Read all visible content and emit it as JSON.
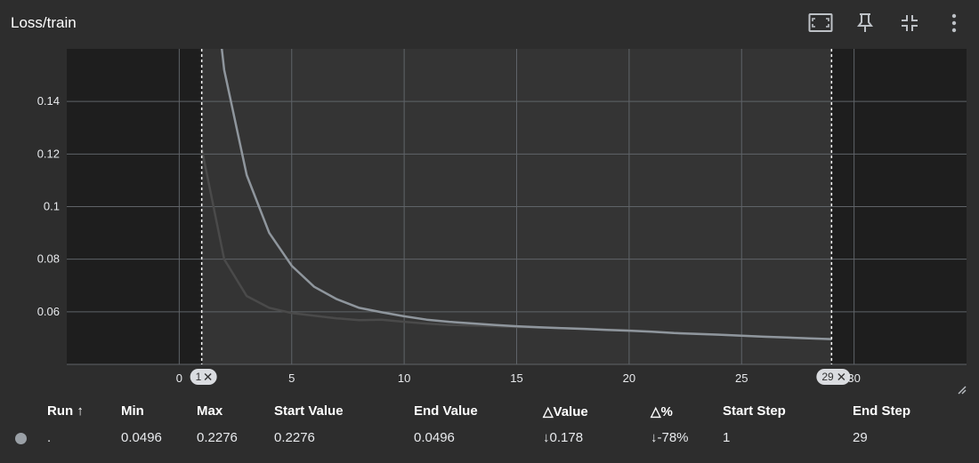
{
  "header": {
    "title": "Loss/train",
    "icons": [
      "fit-domain-icon",
      "pin-icon",
      "collapse-icon",
      "more-vert-icon"
    ]
  },
  "chart_data": {
    "type": "line",
    "title": "Loss/train",
    "xlabel": "",
    "ylabel": "",
    "xlim": [
      -5,
      35
    ],
    "ylim": [
      0.04,
      0.16
    ],
    "x_ticks": [
      0,
      5,
      10,
      15,
      20,
      25,
      30
    ],
    "y_ticks": [
      0.06,
      0.08,
      0.1,
      0.12,
      0.14
    ],
    "x_tick_labels": [
      "0",
      "5",
      "10",
      "15",
      "20",
      "25",
      "30"
    ],
    "y_tick_labels": [
      "0.06",
      "0.08",
      "0.1",
      "0.12",
      "0.14"
    ],
    "grid": true,
    "range_markers": [
      1,
      29
    ],
    "range_marker_labels": [
      "1",
      "29"
    ],
    "series": [
      {
        "role": "smoothed",
        "color": "#8f969d",
        "x": [
          1,
          2,
          3,
          4,
          5,
          6,
          7,
          8,
          9,
          10,
          11,
          12,
          13,
          14,
          15,
          16,
          17,
          18,
          19,
          20,
          21,
          22,
          23,
          24,
          25,
          26,
          27,
          28,
          29
        ],
        "y": [
          0.2276,
          0.152,
          0.112,
          0.09,
          0.0775,
          0.0695,
          0.0648,
          0.0615,
          0.0598,
          0.0583,
          0.057,
          0.0562,
          0.0556,
          0.055,
          0.0545,
          0.0541,
          0.0538,
          0.0535,
          0.0531,
          0.0528,
          0.0524,
          0.0519,
          0.0516,
          0.0513,
          0.0509,
          0.0505,
          0.0502,
          0.0499,
          0.0496
        ]
      },
      {
        "role": "raw",
        "color": "#4a4a4a",
        "x": [
          1,
          2,
          3,
          4,
          5,
          6,
          7,
          8,
          9,
          10,
          11,
          12,
          13,
          14,
          15,
          16,
          17,
          18,
          19,
          20,
          21,
          22,
          23,
          24,
          25,
          26,
          27,
          28,
          29
        ],
        "y": [
          0.122,
          0.08,
          0.066,
          0.0615,
          0.0595,
          0.0585,
          0.0575,
          0.0568,
          0.057,
          0.0562,
          0.0555,
          0.055,
          0.0548,
          0.0545,
          0.0542,
          0.054,
          0.0538,
          0.0536,
          0.0532,
          0.0529,
          0.0525,
          0.052,
          0.0517,
          0.0513,
          0.0509,
          0.0505,
          0.0502,
          0.0499,
          0.0496
        ]
      }
    ]
  },
  "table": {
    "headers": {
      "run": "Run ↑",
      "min": "Min",
      "max": "Max",
      "start_value": "Start Value",
      "end_value": "End Value",
      "delta_value": "△Value",
      "delta_pct": "△%",
      "start_step": "Start Step",
      "end_step": "End Step"
    },
    "row": {
      "run_color": "#9aa0a6",
      "run": ".",
      "min": "0.0496",
      "max": "0.2276",
      "start_value": "0.2276",
      "end_value": "0.0496",
      "delta_value": "↓0.178",
      "delta_pct": "↓-78%",
      "start_step": "1",
      "end_step": "29"
    }
  }
}
